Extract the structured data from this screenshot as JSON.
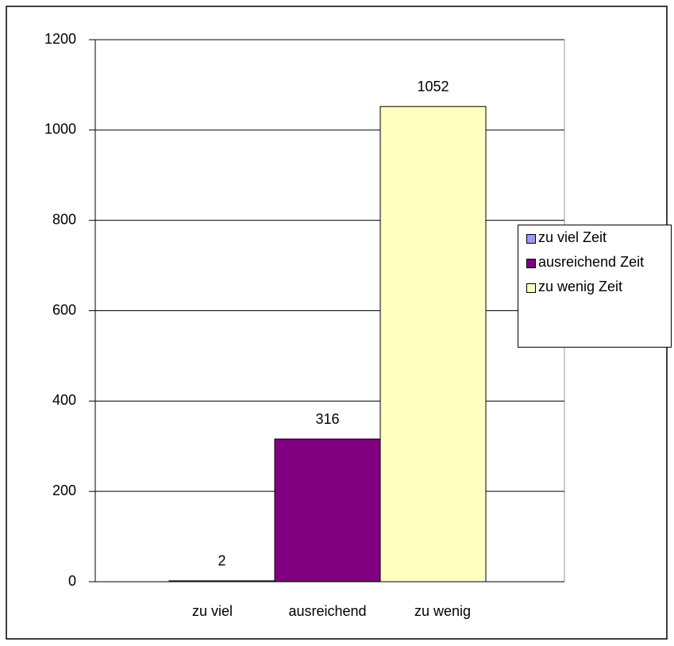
{
  "chart_data": {
    "type": "bar",
    "categories": [
      "zu viel",
      "ausreichend",
      "zu wenig"
    ],
    "values": [
      2,
      316,
      1052
    ],
    "colors": [
      "#9999ff",
      "#800080",
      "#ffffc0"
    ],
    "legend": [
      "zu viel Zeit",
      "ausreichend Zeit",
      "zu wenig Zeit"
    ],
    "ylim": [
      0,
      1200
    ],
    "yticks": [
      0,
      200,
      400,
      600,
      800,
      1000,
      1200
    ],
    "grid": true
  }
}
